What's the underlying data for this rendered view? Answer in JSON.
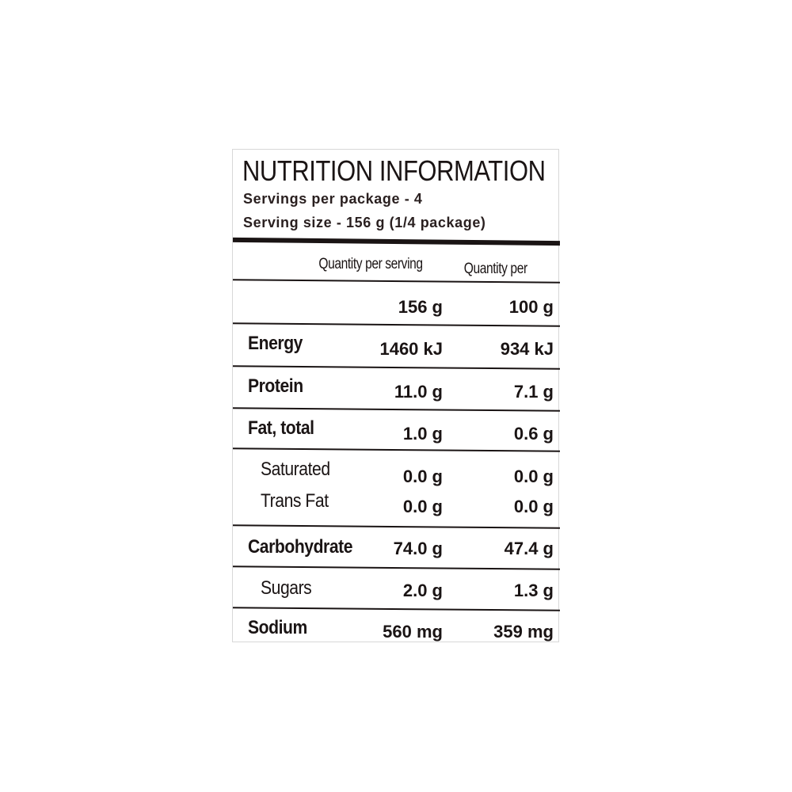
{
  "title": "NUTRITION INFORMATION",
  "servings_per_package": "Servings per package -  4",
  "serving_size": "Serving size - 156 g (1/4 package)",
  "columns": {
    "per_serving": "Quantity per serving",
    "per_100": "Quantity per"
  },
  "amount_row": {
    "per_serving": "156 g",
    "per_100": "100 g"
  },
  "rows": [
    {
      "label": "Energy",
      "per_serving": "1460  kJ",
      "per_100": "934 kJ"
    },
    {
      "label": "Protein",
      "per_serving": "11.0 g",
      "per_100": "7.1 g"
    },
    {
      "label": "Fat, total",
      "per_serving": "1.0 g",
      "per_100": "0.6 g"
    },
    {
      "label": "Saturated",
      "per_serving": "0.0 g",
      "per_100": "0.0 g"
    },
    {
      "label": "Trans Fat",
      "per_serving": "0.0 g",
      "per_100": "0.0 g"
    },
    {
      "label": "Carbohydrate",
      "per_serving": "74.0 g",
      "per_100": "47.4 g"
    },
    {
      "label": "Sugars",
      "per_serving": "2.0 g",
      "per_100": "1.3 g"
    },
    {
      "label": "Sodium",
      "per_serving": "560 mg",
      "per_100": "359 mg"
    }
  ]
}
